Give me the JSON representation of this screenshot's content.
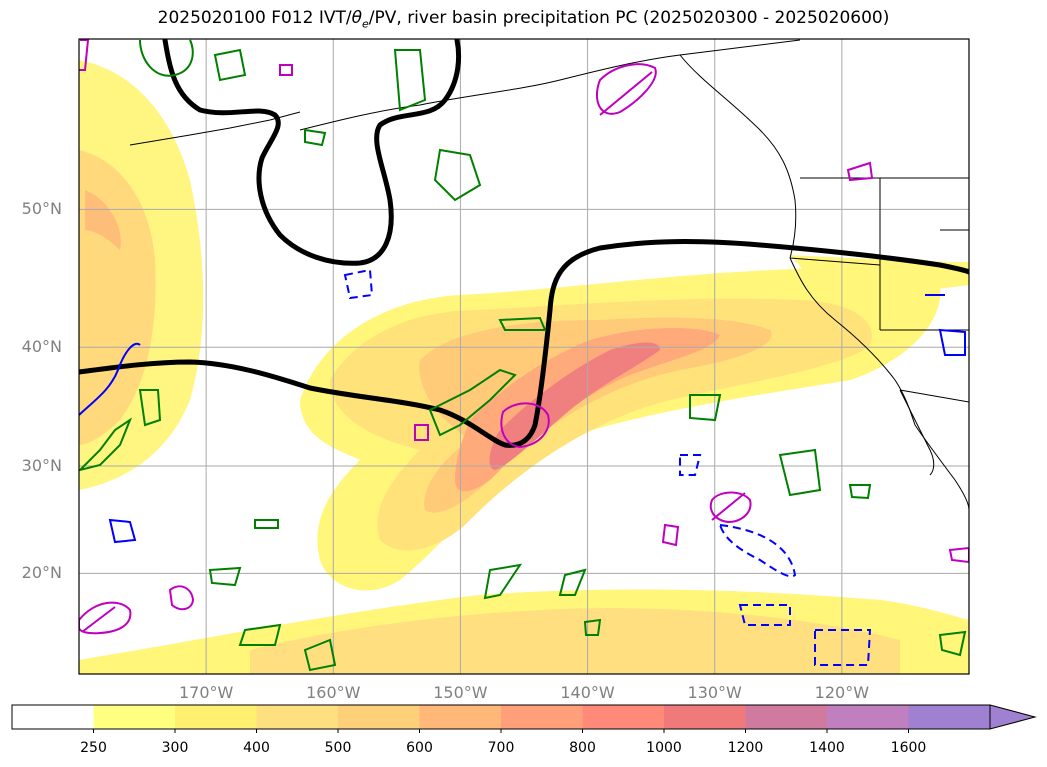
{
  "title_prefix": "2025020100 F012 IVT/",
  "title_theta": "θ",
  "title_theta_sub": "e",
  "title_suffix": "/PV, river basin precipitation PC (2025020300 - 2025020600)",
  "map": {
    "lon_range": [
      -180,
      -110
    ],
    "lat_range": [
      10,
      60
    ],
    "lat_ticks": [
      {
        "lat": 50,
        "label": "50°N"
      },
      {
        "lat": 40,
        "label": "40°N"
      },
      {
        "lat": 30,
        "label": "30°N"
      },
      {
        "lat": 20,
        "label": "20°N"
      }
    ],
    "lon_ticks": [
      {
        "lon": -170,
        "label": "170°W"
      },
      {
        "lon": -160,
        "label": "160°W"
      },
      {
        "lon": -150,
        "label": "150°W"
      },
      {
        "lon": -140,
        "label": "140°W"
      },
      {
        "lon": -130,
        "label": "130°W"
      },
      {
        "lon": -120,
        "label": "120°W"
      }
    ],
    "grid": true
  },
  "colorbar": {
    "levels": [
      "250",
      "300",
      "400",
      "500",
      "600",
      "700",
      "800",
      "1000",
      "1200",
      "1400",
      "1600"
    ],
    "colors": [
      "#ffffff",
      "#ffff80",
      "#fff070",
      "#ffe080",
      "#ffd07a",
      "#ffb878",
      "#ffa07a",
      "#ff8a7a",
      "#f07a7a",
      "#d07aa0",
      "#c080c0",
      "#a080d0"
    ],
    "extend": "max"
  },
  "layers": {
    "ivt_fill_colors": [
      "#fff67a",
      "#ffe27a",
      "#ffcb78",
      "#ffaa7a",
      "#ff8c7c",
      "#f07a7a"
    ],
    "pv_contour_color": "#000000",
    "positive_contour_color": "#008000",
    "negative_contour_color": "#0000ff",
    "magenta_contour_color": "#c000c0",
    "coastline_color": "#000000"
  }
}
